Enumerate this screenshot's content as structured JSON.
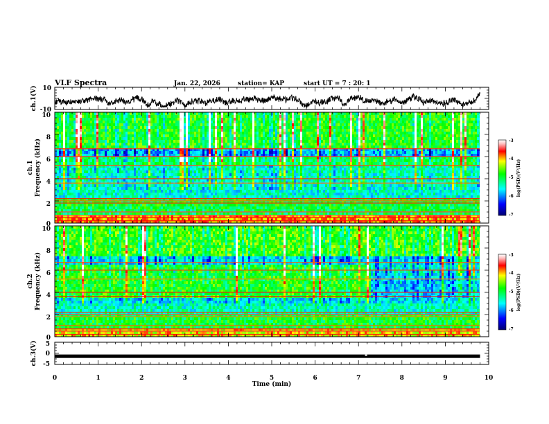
{
  "header": {
    "title": "VLF Spectra",
    "date": "Jan. 22, 2026",
    "station": "station= KAP",
    "start_ut": "start UT =  7 : 20: 1"
  },
  "chart_data": [
    {
      "type": "line",
      "panel": "ch1-waveform",
      "ylabel": "ch.1(V)",
      "ylim": [
        -10,
        10
      ],
      "ytick_labels": [
        "10",
        "-10"
      ],
      "xlim": [
        0,
        10
      ],
      "trace_range_min": [
        -8,
        3
      ],
      "trace_duration_min": 9.8
    },
    {
      "type": "heatmap",
      "panel": "ch1-spectrogram",
      "title": "ch.1",
      "ylabel": "Frequency (kHz)",
      "ylim": [
        0,
        10
      ],
      "yticks": [
        0,
        2,
        4,
        6,
        8,
        10
      ],
      "ytick_labels": [
        "0",
        "2",
        "4",
        "6",
        "8",
        "10"
      ],
      "xlim": [
        0,
        10
      ],
      "colorbar": {
        "label": "log(PSD)(V²/Hz)",
        "range": [
          -7,
          -3
        ],
        "tick_labels": [
          "-3",
          "-4",
          "-5",
          "-6",
          "-7"
        ]
      }
    },
    {
      "type": "heatmap",
      "panel": "ch2-spectrogram",
      "title": "ch.2",
      "ylabel": "Frequency (kHz)",
      "ylim": [
        0,
        10
      ],
      "yticks": [
        0,
        2,
        4,
        6,
        8,
        10
      ],
      "ytick_labels": [
        "0",
        "2",
        "4",
        "6",
        "8",
        "10"
      ],
      "xlim": [
        0,
        10
      ],
      "colorbar": {
        "label": "log(PSD)(V²/Hz)",
        "range": [
          -7,
          -3
        ],
        "tick_labels": [
          "-3",
          "-4",
          "-5",
          "-6",
          "-7"
        ]
      }
    },
    {
      "type": "line",
      "panel": "ch3-waveform",
      "ylabel": "ch.3(V)",
      "ylim": [
        -5,
        5
      ],
      "ytick_labels": [
        "5",
        "0",
        "-5"
      ],
      "xlim": [
        0,
        10
      ],
      "xticks": [
        0,
        1,
        2,
        3,
        4,
        5,
        6,
        7,
        8,
        9,
        10
      ],
      "xtick_labels": [
        "0",
        "1",
        "2",
        "3",
        "4",
        "5",
        "6",
        "7",
        "8",
        "9",
        "10"
      ],
      "xlabel": "Time (min)",
      "trace_level_V": -1.3,
      "gap_min": 7.15
    }
  ],
  "colors": {
    "frame": "#000000",
    "background": "#ffffff"
  }
}
